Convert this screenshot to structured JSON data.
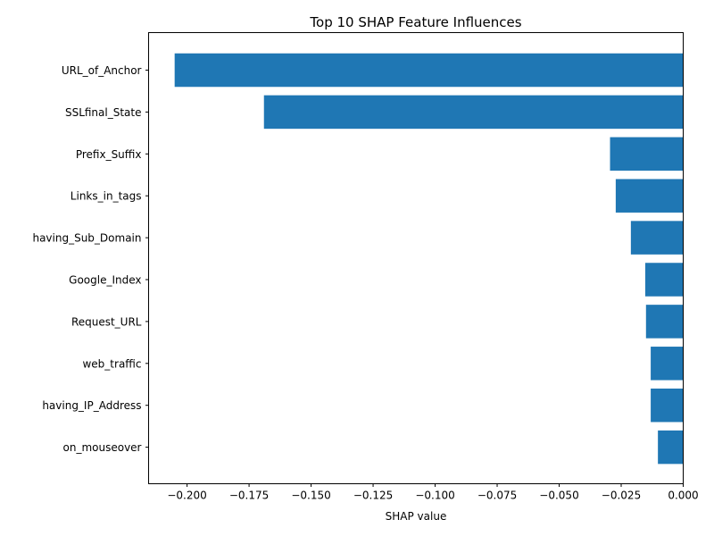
{
  "chart_data": {
    "type": "bar",
    "orientation": "horizontal",
    "title": "Top 10 SHAP Feature Influences",
    "xlabel": "SHAP value",
    "ylabel": "",
    "xlim": [
      -0.2155,
      0.0
    ],
    "xticks": [
      -0.2,
      -0.175,
      -0.15,
      -0.125,
      -0.1,
      -0.075,
      -0.05,
      -0.025,
      0.0
    ],
    "xtick_labels": [
      "−0.200",
      "−0.175",
      "−0.150",
      "−0.125",
      "−0.100",
      "−0.075",
      "−0.050",
      "−0.025",
      "0.000"
    ],
    "categories": [
      "URL_of_Anchor",
      "SSLfinal_State",
      "Prefix_Suffix",
      "Links_in_tags",
      "having_Sub_Domain",
      "Google_Index",
      "Request_URL",
      "web_traffic",
      "having_IP_Address",
      "on_mouseover"
    ],
    "values": [
      -0.205,
      -0.169,
      -0.0295,
      -0.0272,
      -0.0211,
      -0.0153,
      -0.015,
      -0.0131,
      -0.0131,
      -0.0102
    ],
    "bar_color": "#1f77b4",
    "grid": false,
    "legend": "none"
  }
}
